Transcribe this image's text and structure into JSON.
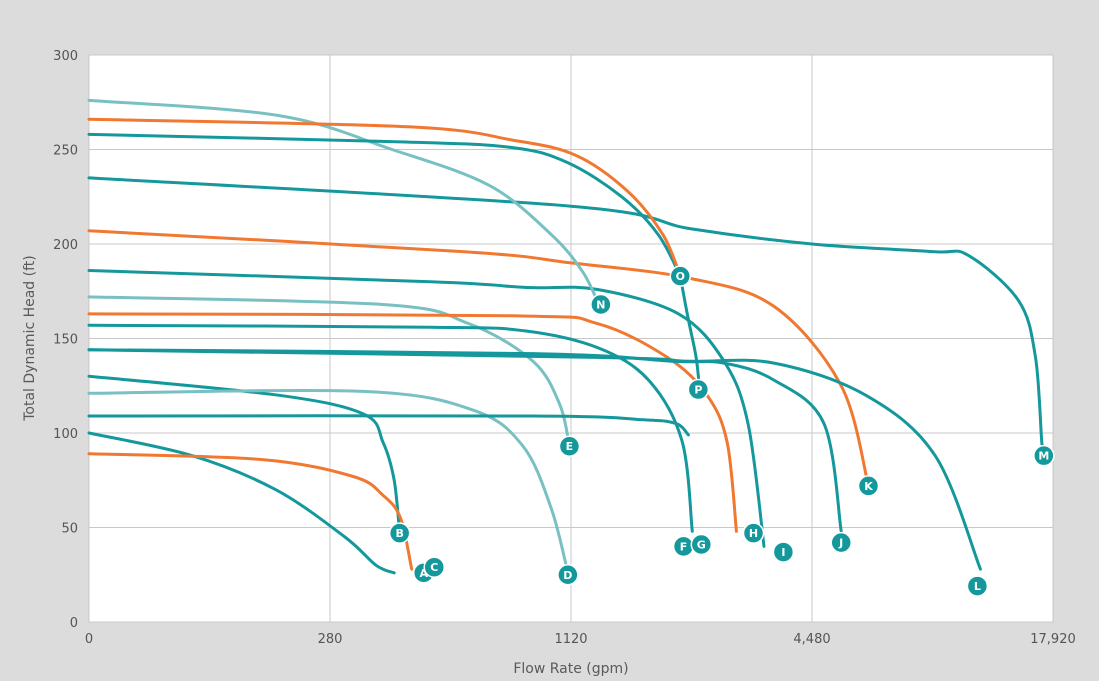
{
  "chart_data": {
    "type": "line",
    "title": "",
    "xlabel": "Flow Rate (gpm)",
    "ylabel": "Total Dynamic Head (ft)",
    "x_scale": "log-like (labeled ticks equally spaced)",
    "x_ticks": [
      "0",
      "280",
      "1120",
      "4,480",
      "17,920"
    ],
    "y_ticks": [
      "0",
      "50",
      "100",
      "150",
      "200",
      "250",
      "300"
    ],
    "ylim": [
      0,
      300
    ],
    "grid": true,
    "legend": "none",
    "colors": {
      "teal": "#14989c",
      "light_teal": "#78c0c2",
      "orange": "#f07830",
      "plot_bg": "#ffffff",
      "frame_bg": "#dcdcdd",
      "grid": "#c8c8c8"
    },
    "series": [
      {
        "name": "A",
        "color": "teal",
        "x": [
          0,
          120,
          217,
          305,
          365,
          405
        ],
        "y": [
          100,
          88,
          70,
          45,
          30,
          26
        ]
      },
      {
        "name": "B",
        "color": "teal",
        "x": [
          0,
          220,
          340,
          380,
          405,
          418
        ],
        "y": [
          130,
          120,
          110,
          95,
          75,
          47
        ]
      },
      {
        "name": "C",
        "color": "orange",
        "x": [
          0,
          200,
          320,
          380,
          420,
          448
        ],
        "y": [
          89,
          86,
          77,
          67,
          55,
          28
        ]
      },
      {
        "name": "D",
        "color": "light_teal",
        "x": [
          0,
          340,
          640,
          850,
          1000,
          1100
        ],
        "y": [
          121,
          122,
          112,
          93,
          60,
          26
        ]
      },
      {
        "name": "E",
        "color": "light_teal",
        "x": [
          0,
          380,
          620,
          900,
          1050,
          1110
        ],
        "y": [
          172,
          168,
          158,
          138,
          115,
          93
        ]
      },
      {
        "name": "F",
        "color": "teal",
        "x": [
          0,
          500,
          860,
          1310,
          1750,
          2120,
          2250
        ],
        "y": [
          157,
          156,
          154,
          145,
          128,
          96,
          48
        ]
      },
      {
        "name": "G",
        "color": "teal",
        "x": [
          0,
          900,
          1700,
          2050,
          2200
        ],
        "y": [
          109,
          109,
          107,
          105,
          99
        ]
      },
      {
        "name": "H",
        "color": "orange",
        "x": [
          0,
          800,
          1300,
          1950,
          2450,
          2750,
          2900
        ],
        "y": [
          163,
          162,
          158,
          140,
          120,
          95,
          48
        ]
      },
      {
        "name": "I",
        "color": "teal",
        "x": [
          0,
          500,
          870,
          1300,
          2080,
          2700,
          3100,
          3400
        ],
        "y": [
          186,
          180,
          177,
          176,
          163,
          138,
          105,
          40
        ]
      },
      {
        "name": "J",
        "color": "teal",
        "x": [
          0,
          900,
          2000,
          2700,
          3600,
          4800,
          5300
        ],
        "y": [
          144,
          142,
          138,
          137,
          128,
          105,
          48
        ]
      },
      {
        "name": "K",
        "color": "orange",
        "x": [
          0,
          600,
          1120,
          2200,
          3600,
          5300,
          6200
        ],
        "y": [
          207,
          196,
          190,
          182,
          167,
          125,
          72
        ]
      },
      {
        "name": "L",
        "color": "teal",
        "x": [
          0,
          1300,
          2200,
          3600,
          6100,
          9100,
          11800
        ],
        "y": [
          144,
          140,
          138,
          137,
          120,
          88,
          28
        ]
      },
      {
        "name": "M",
        "color": "teal",
        "x": [
          0,
          1120,
          2240,
          4480,
          8960,
          11000,
          14700,
          16200,
          16800,
          17000
        ],
        "y": [
          235,
          220,
          208,
          200,
          196,
          194,
          170,
          140,
          95,
          88
        ]
      },
      {
        "name": "N",
        "color": "light_teal",
        "x": [
          0,
          220,
          400,
          700,
          1000,
          1200,
          1320
        ],
        "y": [
          276,
          268,
          250,
          231,
          205,
          185,
          167
        ]
      },
      {
        "name": "O",
        "color": "teal",
        "x": [
          0,
          420,
          800,
          1100,
          1500,
          1850,
          2100
        ],
        "y": [
          258,
          254,
          251,
          243,
          225,
          205,
          183
        ]
      },
      {
        "name": "O-orange",
        "color": "orange",
        "x": [
          0,
          440,
          800,
          1150,
          1550,
          1900,
          2100
        ],
        "y": [
          266,
          262,
          255,
          247,
          228,
          205,
          183
        ]
      },
      {
        "name": "P",
        "color": "teal",
        "x": [
          2100,
          2200,
          2300,
          2350
        ],
        "y": [
          183,
          160,
          140,
          122
        ]
      }
    ],
    "markers": [
      {
        "label": "A",
        "x": 480,
        "y": 26
      },
      {
        "label": "B",
        "x": 418,
        "y": 47
      },
      {
        "label": "C",
        "x": 510,
        "y": 29
      },
      {
        "label": "D",
        "x": 1100,
        "y": 25
      },
      {
        "label": "E",
        "x": 1110,
        "y": 93
      },
      {
        "label": "F",
        "x": 2140,
        "y": 40
      },
      {
        "label": "G",
        "x": 2370,
        "y": 41
      },
      {
        "label": "H",
        "x": 3200,
        "y": 47
      },
      {
        "label": "I",
        "x": 3800,
        "y": 37
      },
      {
        "label": "J",
        "x": 5300,
        "y": 42
      },
      {
        "label": "K",
        "x": 6200,
        "y": 72
      },
      {
        "label": "L",
        "x": 11600,
        "y": 19
      },
      {
        "label": "M",
        "x": 17000,
        "y": 88
      },
      {
        "label": "N",
        "x": 1330,
        "y": 168
      },
      {
        "label": "O",
        "x": 2100,
        "y": 183
      },
      {
        "label": "P",
        "x": 2330,
        "y": 123
      }
    ]
  }
}
